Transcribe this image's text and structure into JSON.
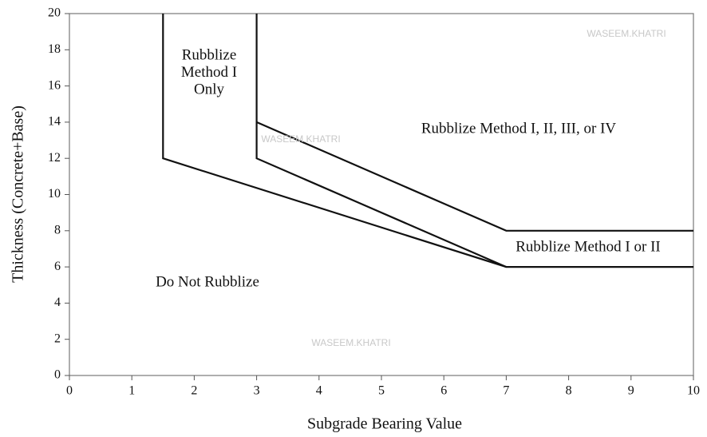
{
  "chart_data": {
    "type": "line",
    "xlabel": "Subgrade Bearing Value",
    "ylabel": "Thickness (Concrete+Base)",
    "xlim": [
      0,
      10
    ],
    "ylim": [
      0,
      20
    ],
    "xticks": [
      0,
      1,
      2,
      3,
      4,
      5,
      6,
      7,
      8,
      9,
      10
    ],
    "yticks": [
      0,
      2,
      4,
      6,
      8,
      10,
      12,
      14,
      16,
      18,
      20
    ],
    "grid": false,
    "series": [
      {
        "color": "#111111",
        "x": [
          1.5,
          1.5,
          7,
          10
        ],
        "values": [
          20,
          12,
          6,
          6
        ]
      },
      {
        "color": "#111111",
        "x": [
          3,
          3,
          7
        ],
        "values": [
          20,
          12,
          6
        ]
      },
      {
        "color": "#111111",
        "x": [
          3,
          7,
          10
        ],
        "values": [
          14,
          8,
          8
        ]
      }
    ],
    "annotations": [
      {
        "lines": [
          "Rubblize",
          "Method I",
          "Only"
        ]
      },
      {
        "lines": [
          "Rubblize Method I, II, III, or IV"
        ]
      },
      {
        "lines": [
          "Rubblize Method I or II"
        ]
      },
      {
        "lines": [
          "Do Not Rubblize"
        ]
      }
    ],
    "watermarks": [
      "WASEEM.KHATRI",
      "WASEEM.KHATRI",
      "WASEEM.KHATRI"
    ]
  }
}
